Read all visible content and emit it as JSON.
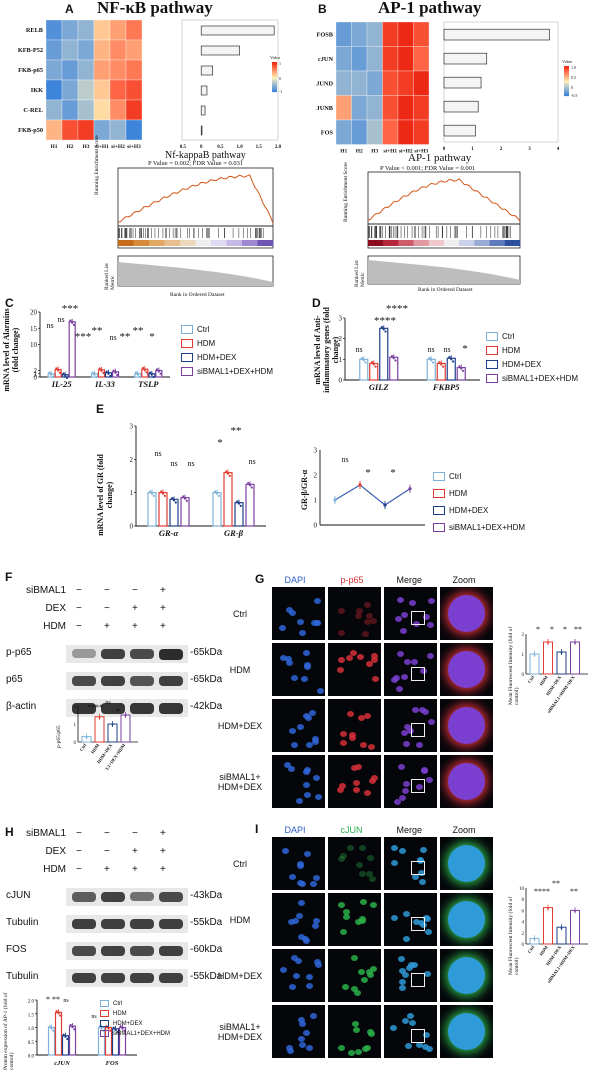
{
  "panels": {
    "A": {
      "letter": "A",
      "title": "NF-κB pathway",
      "rows": [
        "RELB",
        "NKFB-P52",
        "NFKB-p65",
        "IKK",
        "C-REL",
        "NFKB-p50"
      ],
      "cols": [
        "H1",
        "H2",
        "H3",
        "si+H1",
        "si+H2",
        "si+H3"
      ],
      "legend_title": "Value",
      "legend_ticks": [
        "1",
        "0",
        "-1"
      ],
      "bar_axis_ticks": [
        "-0.5",
        "0",
        "0.5",
        "1.0",
        "1.5",
        "2.0"
      ],
      "gsea_title": "Nf-kappaB pathway",
      "gsea_subtitle": "P Value = 0.002; FDR Value = 0.031",
      "gsea_ylabel": "Running Enrichment Score",
      "gsea_ylabel2": "Ranked List Metric",
      "gsea_xlabel": "Rank in Ordered Dataset"
    },
    "B": {
      "letter": "B",
      "title": "AP-1 pathway",
      "rows": [
        "FOSB",
        "cJUN",
        "JUND",
        "JUNB",
        "FOS"
      ],
      "cols": [
        "H1",
        "H2",
        "H3",
        "si+H1",
        "si+H2",
        "si+H3"
      ],
      "legend_title": "Value",
      "legend_ticks": [
        "1.0",
        "0.5",
        "0",
        "-0.5"
      ],
      "bar_axis_ticks": [
        "0",
        "1",
        "2",
        "3",
        "4"
      ],
      "gsea_title": "AP-1 pathway",
      "gsea_subtitle": "P Value < 0.001; FDR Value = 0.001",
      "gsea_ylabel": "Running Enrichment Score",
      "gsea_ylabel2": "Ranked List Metric",
      "gsea_xlabel": "Rank in Ordered Dataset"
    },
    "C": {
      "letter": "C",
      "ylabel": "mRNA level of Alarmins (fold change)",
      "categories": [
        "IL-25",
        "IL-33",
        "TSLP"
      ],
      "sig": [
        "ns",
        "ns",
        "***",
        "***",
        "**",
        "ns",
        "**",
        "**",
        "*"
      ]
    },
    "D": {
      "letter": "D",
      "ylabel": "mRNA level of Anti-inflammatory genes (fold change)",
      "categories": [
        "GILZ",
        "FKBP5"
      ],
      "sig": [
        "****",
        "****",
        "ns",
        "ns",
        "ns",
        "*"
      ]
    },
    "E": {
      "letter": "E",
      "ylabel": "mRNA level of GR (fold change)",
      "categories": [
        "GR-α",
        "GR-β"
      ],
      "sig": [
        "ns",
        "ns",
        "ns",
        "*",
        "**",
        "ns"
      ],
      "ratio_ylabel": "GR-β/GR-α",
      "ratio_sig": [
        "ns",
        "*",
        "*"
      ]
    },
    "F": {
      "letter": "F",
      "conditions": [
        {
          "name": "siBMAL1",
          "signs": [
            "−",
            "−",
            "−",
            "+"
          ]
        },
        {
          "name": "DEX",
          "signs": [
            "−",
            "−",
            "+",
            "+"
          ]
        },
        {
          "name": "HDM",
          "signs": [
            "−",
            "+",
            "+",
            "+"
          ]
        }
      ],
      "blots": [
        {
          "name": "p-p65",
          "kda": "65kDa"
        },
        {
          "name": "p65",
          "kda": "65kDa"
        },
        {
          "name": "β-actin",
          "kda": "42kDa"
        }
      ],
      "quant_ylabel": "p-p65/p65",
      "quant_sig": [
        "****",
        "ns",
        "*"
      ],
      "quant_x": [
        "Ctrl",
        "HDM",
        "HDM+DEX",
        "siBMAL1+DEX+HDM"
      ]
    },
    "G": {
      "letter": "G",
      "columns": [
        "DAPI",
        "p-p65",
        "Merge",
        "Zoom"
      ],
      "rows": [
        "Ctrl",
        "HDM",
        "HDM+DEX",
        "siBMAL1+\nHDM+DEX"
      ],
      "quant_ylabel": "Mean Fluorescent Intensity (fold of control)",
      "quant_sig": [
        "*",
        "*",
        "*",
        "**"
      ],
      "quant_x": [
        "Ctrl",
        "HDM",
        "HDM+DEX",
        "siBMAL1+HDM+DEX"
      ]
    },
    "H": {
      "letter": "H",
      "conditions": [
        {
          "name": "siBMAL1",
          "signs": [
            "−",
            "−",
            "−",
            "+"
          ]
        },
        {
          "name": "DEX",
          "signs": [
            "−",
            "−",
            "+",
            "+"
          ]
        },
        {
          "name": "HDM",
          "signs": [
            "−",
            "+",
            "+",
            "+"
          ]
        }
      ],
      "blots": [
        {
          "name": "cJUN",
          "kda": "43kDa"
        },
        {
          "name": "Tubulin",
          "kda": "55kDa"
        },
        {
          "name": "FOS",
          "kda": "60kDa"
        },
        {
          "name": "Tubulin",
          "kda": "55kDa"
        }
      ],
      "quant_ylabel": "Protein expression of AP-1 (fold of control)",
      "quant_categories": [
        "cJUN",
        "FOS"
      ],
      "quant_sig": [
        "*",
        "**",
        "ns",
        "ns"
      ]
    },
    "I": {
      "letter": "I",
      "columns": [
        "DAPI",
        "cJUN",
        "Merge",
        "Zoom"
      ],
      "rows": [
        "Ctrl",
        "HDM",
        "HDM+DEX",
        "siBMAL1+\nHDM+DEX"
      ],
      "quant_ylabel": "Mean Fluorescent Intensity (fold of control)",
      "quant_sig": [
        "****",
        "**",
        "**"
      ],
      "quant_x": [
        "Ctrl",
        "HDM",
        "HDM+DEX",
        "siBMAL1+HDM+DEX"
      ]
    }
  },
  "legend": [
    "Ctrl",
    "HDM",
    "HDM+DEX",
    "siBMAL1+DEX+HDM"
  ],
  "legend_colors": [
    "#7fb2d9",
    "#e23b32",
    "#1f3f8a",
    "#7a3fa0"
  ],
  "chart_data": [
    {
      "type": "heatmap",
      "title": "NF-κB pathway",
      "rows": [
        "RELB",
        "NKFB-P52",
        "NFKB-p65",
        "IKK",
        "C-REL",
        "NFKB-p50"
      ],
      "cols": [
        "H1",
        "H2",
        "H3",
        "si+H1",
        "si+H2",
        "si+H3"
      ],
      "values": [
        [
          -0.8,
          -0.6,
          -0.5,
          0.2,
          0.4,
          0.6
        ],
        [
          -0.7,
          -0.5,
          -0.6,
          0.3,
          0.5,
          0.4
        ],
        [
          -0.6,
          -0.7,
          -0.5,
          0.4,
          0.5,
          0.6
        ],
        [
          -0.9,
          -0.6,
          -0.3,
          0.2,
          0.7,
          0.8
        ],
        [
          -0.5,
          -0.7,
          -0.4,
          0.1,
          0.5,
          0.9
        ],
        [
          0.3,
          0.8,
          0.9,
          -0.6,
          -0.5,
          -0.9
        ]
      ]
    },
    {
      "type": "heatmap",
      "title": "AP-1 pathway",
      "rows": [
        "FOSB",
        "cJUN",
        "JUND",
        "JUNB",
        "FOS"
      ],
      "cols": [
        "H1",
        "H2",
        "H3",
        "si+H1",
        "si+H2",
        "si+H3"
      ],
      "values": [
        [
          -0.7,
          -0.6,
          -0.5,
          0.9,
          1.0,
          0.8
        ],
        [
          -0.6,
          -0.7,
          -0.5,
          0.9,
          1.0,
          0.7
        ],
        [
          -0.5,
          -0.5,
          -0.6,
          0.8,
          0.9,
          1.0
        ],
        [
          0.4,
          -0.6,
          -0.5,
          0.8,
          1.0,
          0.9
        ],
        [
          -0.6,
          -0.7,
          -0.4,
          0.7,
          1.0,
          0.9
        ]
      ]
    },
    {
      "type": "bar",
      "title": "NF-κB pathway",
      "categories": [
        "RELB",
        "NKFB-P52",
        "NFKB-p65",
        "IKK",
        "C-REL",
        "NFKB-p50"
      ],
      "values": [
        1.9,
        1.0,
        0.3,
        0.15,
        0.1,
        0.02
      ],
      "xlim": [
        -0.5,
        2.0
      ]
    },
    {
      "type": "bar",
      "title": "AP-1 pathway",
      "categories": [
        "FOSB",
        "cJUN",
        "JUND",
        "JUNB",
        "FOS"
      ],
      "values": [
        3.7,
        1.5,
        1.3,
        1.2,
        1.1
      ],
      "xlim": [
        0,
        4
      ]
    },
    {
      "type": "bar",
      "ylabel": "mRNA level of Alarmins (fold change)",
      "categories": [
        "IL-25",
        "IL-33",
        "TSLP"
      ],
      "series": [
        {
          "name": "Ctrl",
          "values": [
            1.0,
            1.0,
            1.0
          ]
        },
        {
          "name": "HDM",
          "values": [
            2.3,
            2.2,
            2.4
          ]
        },
        {
          "name": "HDM+DEX",
          "values": [
            0.7,
            1.3,
            1.0
          ]
        },
        {
          "name": "siBMAL1+DEX+HDM",
          "values": [
            17,
            1.6,
            2.0
          ]
        }
      ]
    },
    {
      "type": "bar",
      "ylabel": "mRNA level of Anti-inflammatory genes (fold change)",
      "categories": [
        "GILZ",
        "FKBP5"
      ],
      "series": [
        {
          "name": "Ctrl",
          "values": [
            1.0,
            1.0
          ]
        },
        {
          "name": "HDM",
          "values": [
            0.8,
            0.8
          ]
        },
        {
          "name": "HDM+DEX",
          "values": [
            2.5,
            1.05
          ]
        },
        {
          "name": "siBMAL1+DEX+HDM",
          "values": [
            1.1,
            0.6
          ]
        }
      ],
      "ylim": [
        0,
        3
      ]
    },
    {
      "type": "bar",
      "ylabel": "mRNA level of GR (fold change)",
      "categories": [
        "GR-α",
        "GR-β"
      ],
      "series": [
        {
          "name": "Ctrl",
          "values": [
            1.0,
            1.0
          ]
        },
        {
          "name": "HDM",
          "values": [
            1.0,
            1.6
          ]
        },
        {
          "name": "HDM+DEX",
          "values": [
            0.8,
            0.7
          ]
        },
        {
          "name": "siBMAL1+DEX+HDM",
          "values": [
            0.85,
            1.25
          ]
        }
      ],
      "ylim": [
        0,
        3
      ]
    },
    {
      "type": "line",
      "ylabel": "GR-β/GR-α",
      "x": [
        "Ctrl",
        "HDM",
        "HDM+DEX",
        "siBMAL1+DEX+HDM"
      ],
      "values": [
        1.0,
        1.6,
        0.8,
        1.45
      ],
      "ylim": [
        0,
        3
      ]
    },
    {
      "type": "bar",
      "ylabel": "p-p65/p65",
      "categories": [
        "Ctrl",
        "HDM",
        "HDM+DEX",
        "siBMAL1+DEX+HDM"
      ],
      "values": [
        0.3,
        1.4,
        1.0,
        1.5
      ]
    },
    {
      "type": "bar",
      "ylabel": "Mean Fluorescent Intensity (fold of control)",
      "categories": [
        "Ctrl",
        "HDM",
        "HDM+DEX",
        "siBMAL1+HDM+DEX"
      ],
      "values": [
        1.0,
        1.6,
        1.1,
        1.6
      ]
    },
    {
      "type": "bar",
      "ylabel": "Protein expression of AP-1 (fold of control)",
      "categories": [
        "cJUN",
        "FOS"
      ],
      "series": [
        {
          "name": "Ctrl",
          "values": [
            1.0,
            1.0
          ]
        },
        {
          "name": "HDM",
          "values": [
            1.55,
            1.0
          ]
        },
        {
          "name": "HDM+DEX",
          "values": [
            0.7,
            0.95
          ]
        },
        {
          "name": "siBMAL1+DEX+HDM",
          "values": [
            1.05,
            1.0
          ]
        }
      ],
      "ylim": [
        0,
        2
      ]
    },
    {
      "type": "bar",
      "ylabel": "Mean Fluorescent Intensity (fold of control)",
      "categories": [
        "Ctrl",
        "HDM",
        "HDM+DEX",
        "siBMAL1+HDM+DEX"
      ],
      "values": [
        1.0,
        6.5,
        3.0,
        6.0
      ],
      "ylim": [
        0,
        10
      ]
    }
  ]
}
